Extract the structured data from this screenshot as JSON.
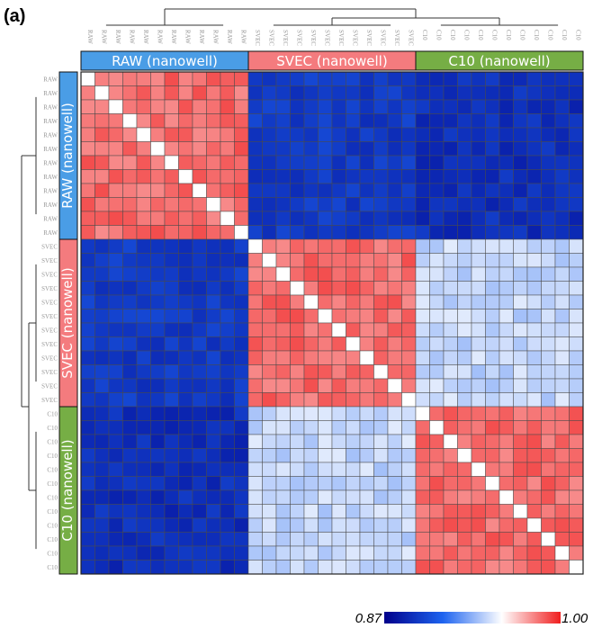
{
  "chart_data": {
    "type": "heatmap",
    "panel_label": "(a)",
    "groups": [
      {
        "name": "RAW (nanowell)",
        "count": 12,
        "tick": "RAW",
        "color": "#4a9de6"
      },
      {
        "name": "SVEC (nanowell)",
        "count": 12,
        "tick": "SVEC",
        "color": "#f47b7e"
      },
      {
        "name": "C10 (nanowell)",
        "count": 12,
        "tick": "C10",
        "color": "#76ae45"
      }
    ],
    "block_mean_correlation": [
      [
        0.985,
        0.895,
        0.89
      ],
      [
        0.895,
        0.985,
        0.945
      ],
      [
        0.89,
        0.945,
        0.985
      ]
    ],
    "diagonal_value": 1.0,
    "color_scale": {
      "min": 0.87,
      "max": 1.0,
      "min_label": "0.87",
      "max_label": "1.00",
      "colors": [
        "#00008b",
        "#1e64f0",
        "#ffffff",
        "#f01e1e"
      ]
    },
    "dendrogram": {
      "top_cluster_joins": [
        "SVEC+C10",
        "RAW+(SVEC+C10)"
      ]
    }
  }
}
